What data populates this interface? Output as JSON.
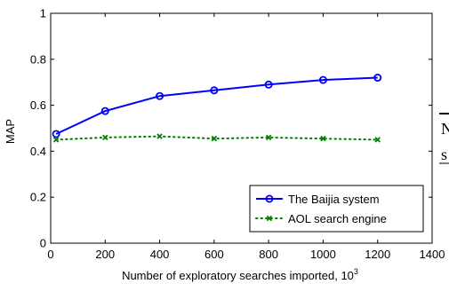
{
  "chart_data": {
    "type": "line",
    "title": "",
    "xlabel": "Number of exploratory searches imported, 10",
    "xlabel_superscript": "3",
    "ylabel": "MAP",
    "xlim": [
      0,
      1400
    ],
    "ylim": [
      0,
      1
    ],
    "x_ticks": [
      "0",
      "200",
      "400",
      "600",
      "800",
      "1000",
      "1200",
      "1400"
    ],
    "y_ticks": [
      "0",
      "0.2",
      "0.4",
      "0.6",
      "0.8",
      "1"
    ],
    "grid": false,
    "legend_position": "bottom-right",
    "series": [
      {
        "name": "The Baijia system",
        "color": "#0000ff",
        "line_style": "solid",
        "marker": "circle",
        "x": [
          20,
          200,
          400,
          600,
          800,
          1000,
          1200
        ],
        "y": [
          0.475,
          0.575,
          0.64,
          0.665,
          0.69,
          0.71,
          0.72
        ]
      },
      {
        "name": "AOL search engine",
        "color": "#008000",
        "line_style": "dotted",
        "marker": "x",
        "x": [
          20,
          200,
          400,
          600,
          800,
          1000,
          1200
        ],
        "y": [
          0.45,
          0.46,
          0.465,
          0.455,
          0.46,
          0.455,
          0.45
        ]
      }
    ]
  },
  "cropped_fragment": {
    "letters": [
      "N",
      "s"
    ]
  }
}
